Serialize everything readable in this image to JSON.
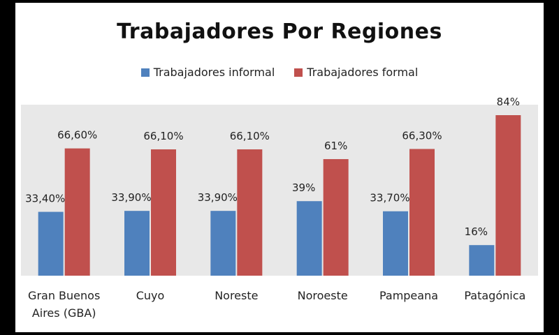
{
  "chart_data": {
    "type": "bar",
    "title": "Trabajadores Por Regiones",
    "categories": [
      "Gran Buenos Aires (GBA)",
      "Cuyo",
      "Noreste",
      "Noroeste",
      "Pampeana",
      "Patagónica"
    ],
    "series": [
      {
        "name": "Trabajadores informal",
        "color": "#4f81bd",
        "values": [
          33.4,
          33.9,
          33.9,
          39,
          33.7,
          16
        ],
        "labels": [
          "33,40%",
          "33,90%",
          "33,90%",
          "39%",
          "33,70%",
          "16%"
        ]
      },
      {
        "name": "Trabajadores formal",
        "color": "#c0504d",
        "values": [
          66.6,
          66.1,
          66.1,
          61,
          66.3,
          84
        ],
        "labels": [
          "66,60%",
          "66,10%",
          "66,10%",
          "61%",
          "66,30%",
          "84%"
        ]
      }
    ],
    "ylim": [
      0,
      100
    ],
    "legend": "top",
    "grid": false,
    "plot_background": "#e8e8e8"
  }
}
